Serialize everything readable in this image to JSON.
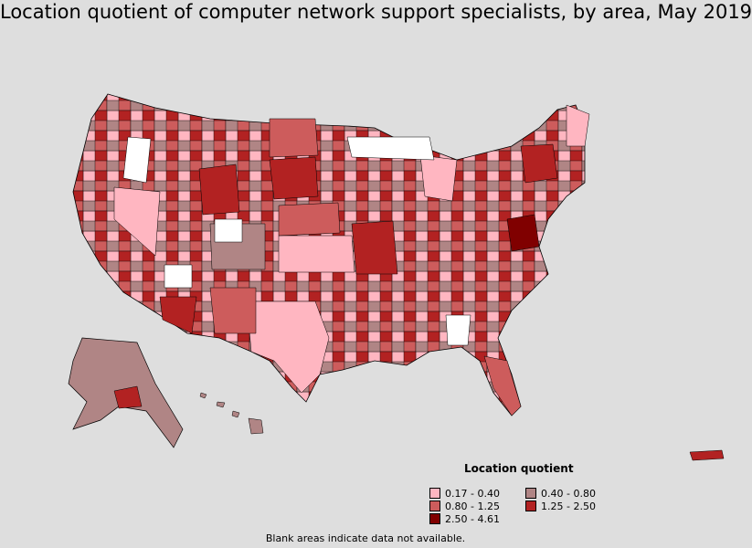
{
  "title": "Location quotient of computer network support specialists, by area, May 2019",
  "legend": {
    "title": "Location quotient",
    "items": [
      {
        "label": "0.17 - 0.40",
        "color": "#ffb6c1"
      },
      {
        "label": "0.40 - 0.80",
        "color": "#b08585"
      },
      {
        "label": "0.80 - 1.25",
        "color": "#cd5c5c"
      },
      {
        "label": "1.25 - 2.50",
        "color": "#b22222"
      },
      {
        "label": "2.50 - 4.61",
        "color": "#800000"
      }
    ]
  },
  "note": "Blank areas indicate data not available.",
  "colors": {
    "background": "#dedede",
    "no_data": "#ffffff",
    "border": "#000000"
  }
}
